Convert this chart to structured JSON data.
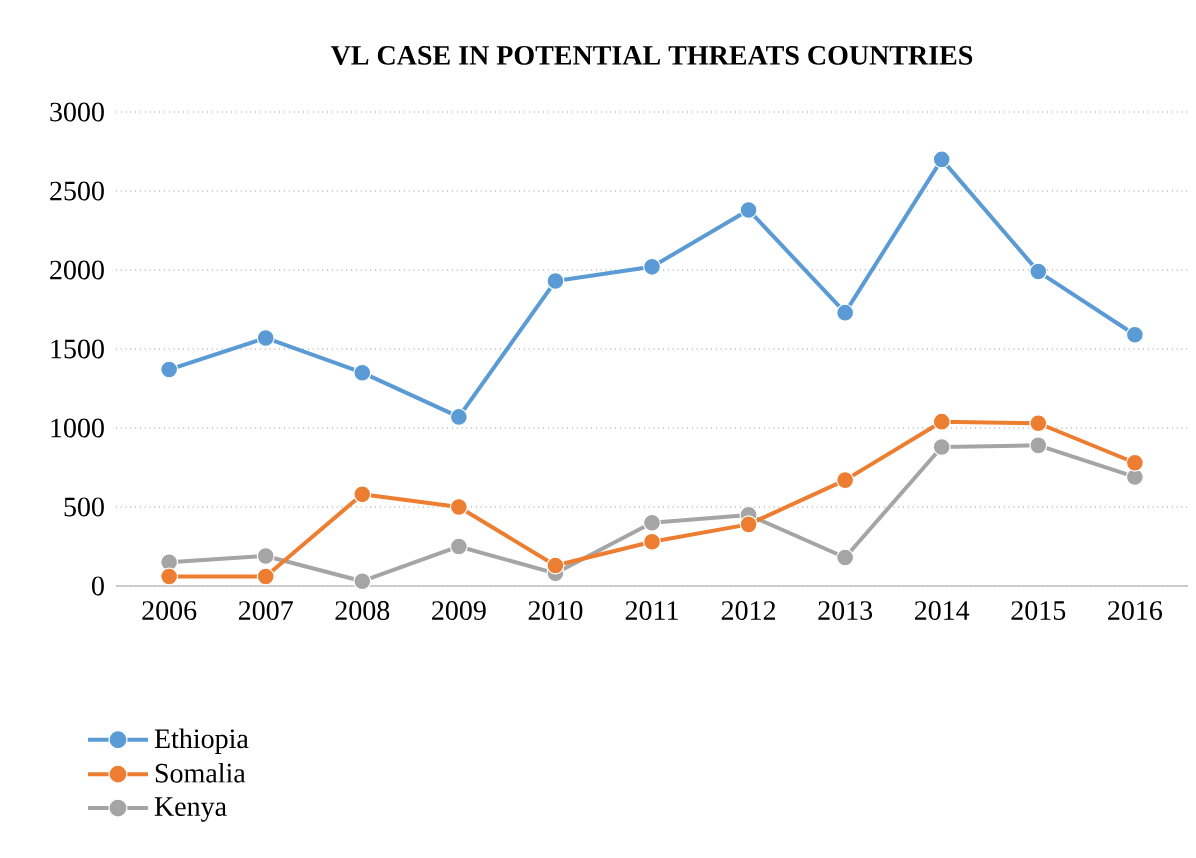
{
  "chart_data": {
    "type": "line",
    "title": "VL CASE IN POTENTIAL THREATS COUNTRIES",
    "categories": [
      "2006",
      "2007",
      "2008",
      "2009",
      "2010",
      "2011",
      "2012",
      "2013",
      "2014",
      "2015",
      "2016"
    ],
    "series": [
      {
        "name": "Ethiopia",
        "color": "#5b9bd5",
        "values": [
          1370,
          1570,
          1350,
          1070,
          1930,
          2020,
          2380,
          1730,
          2700,
          1990,
          1590
        ]
      },
      {
        "name": "Somalia",
        "color": "#ed7d31",
        "values": [
          60,
          60,
          580,
          500,
          130,
          280,
          390,
          670,
          1040,
          1030,
          780
        ]
      },
      {
        "name": "Kenya",
        "color": "#a5a5a5",
        "values": [
          150,
          190,
          30,
          250,
          80,
          400,
          450,
          180,
          880,
          890,
          690
        ]
      }
    ],
    "ylim": [
      0,
      3000
    ],
    "yticks": [
      0,
      500,
      1000,
      1500,
      2000,
      2500,
      3000
    ],
    "grid": "y",
    "legend": "bottom left",
    "marker": "circle",
    "line_style": "solid"
  }
}
